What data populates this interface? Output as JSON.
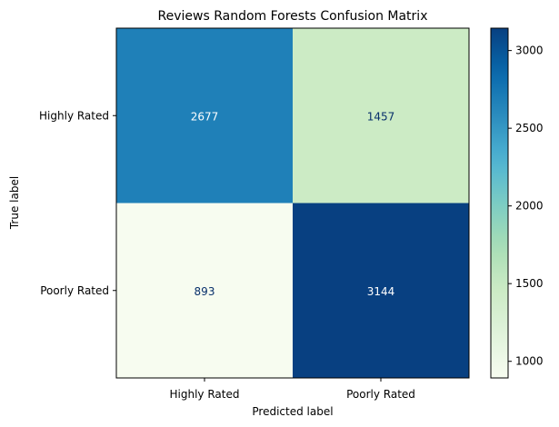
{
  "chart_data": {
    "type": "heatmap",
    "title": "Reviews Random Forests Confusion Matrix",
    "xlabel": "Predicted label",
    "ylabel": "True label",
    "x_categories": [
      "Highly Rated",
      "Poorly Rated"
    ],
    "y_categories": [
      "Highly Rated",
      "Poorly Rated"
    ],
    "values": [
      [
        2677,
        1457
      ],
      [
        893,
        3144
      ]
    ],
    "colormap": "GnBu",
    "color_range": [
      893,
      3144
    ],
    "colorbar_ticks": [
      1000,
      1500,
      2000,
      2500,
      3000
    ],
    "grid": false
  }
}
